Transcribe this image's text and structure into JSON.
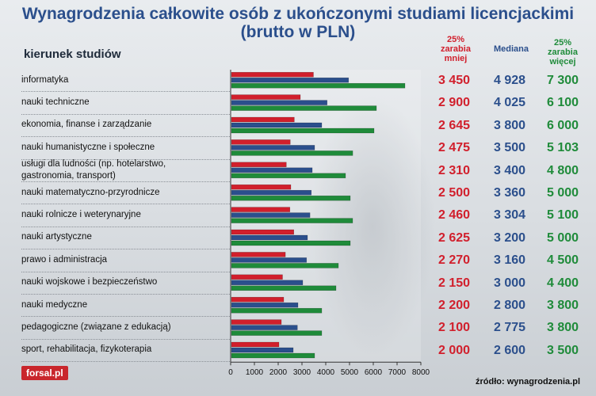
{
  "title_line1": "Wynagrodzenia całkowite osób z ukończonymi studiami licencjackimi",
  "title_line2": "(brutto w PLN)",
  "row_header": "kierunek studiów",
  "col_low": [
    "25%",
    "zarabia",
    "mniej"
  ],
  "col_med": "Mediana",
  "col_high": [
    "25%",
    "zarabia",
    "więcej"
  ],
  "logo": "forsal.pl",
  "source": "źródło: wynagrodzenia.pl",
  "colors": {
    "low": "#d11f2c",
    "median": "#2b4f8c",
    "high": "#1f8b3a"
  },
  "chart_data": {
    "type": "bar",
    "orientation": "horizontal",
    "xlim": [
      0,
      8000
    ],
    "x_ticks": [
      "0",
      "1000",
      "2000",
      "3000",
      "4000",
      "5000",
      "6000",
      "7000",
      "8000"
    ],
    "categories": [
      "informatyka",
      "nauki techniczne",
      "ekonomia, finanse i zarządzanie",
      "nauki humanistyczne i społeczne",
      "usługi dla ludności (np. hotelarstwo, gastronomia, transport)",
      "nauki matematyczno-przyrodnicze",
      "nauki rolnicze i weterynaryjne",
      "nauki artystyczne",
      "prawo i administracja",
      "nauki wojskowe i bezpieczeństwo",
      "nauki medyczne",
      "pedagogiczne (związane z edukacją)",
      "sport, rehabilitacja, fizykoterapia"
    ],
    "category_lines": [
      [
        "informatyka"
      ],
      [
        "nauki techniczne"
      ],
      [
        "ekonomia, finanse i zarządzanie"
      ],
      [
        "nauki humanistyczne i społeczne"
      ],
      [
        "usługi dla ludności (np. hotelarstwo,",
        "gastronomia, transport)"
      ],
      [
        "nauki matematyczno-przyrodnicze"
      ],
      [
        "nauki rolnicze i weterynaryjne"
      ],
      [
        "nauki artystyczne"
      ],
      [
        "prawo i administracja"
      ],
      [
        "nauki wojskowe i bezpieczeństwo"
      ],
      [
        "nauki medyczne"
      ],
      [
        "pedagogiczne (związane z edukacją)"
      ],
      [
        "sport, rehabilitacja, fizykoterapia"
      ]
    ],
    "series": [
      {
        "key": "low",
        "values": [
          3450,
          2900,
          2645,
          2475,
          2310,
          2500,
          2460,
          2625,
          2270,
          2150,
          2200,
          2100,
          2000
        ]
      },
      {
        "key": "median",
        "values": [
          4928,
          4025,
          3800,
          3500,
          3400,
          3360,
          3304,
          3200,
          3160,
          3000,
          2800,
          2775,
          2600
        ]
      },
      {
        "key": "high",
        "values": [
          7300,
          6100,
          6000,
          5103,
          4800,
          5000,
          5100,
          5000,
          4500,
          4400,
          3800,
          3800,
          3500
        ]
      }
    ],
    "value_labels": {
      "low": [
        "3 450",
        "2 900",
        "2 645",
        "2 475",
        "2 310",
        "2 500",
        "2 460",
        "2 625",
        "2 270",
        "2 150",
        "2 200",
        "2 100",
        "2 000"
      ],
      "median": [
        "4 928",
        "4 025",
        "3 800",
        "3 500",
        "3 400",
        "3 360",
        "3 304",
        "3 200",
        "3 160",
        "3 000",
        "2 800",
        "2 775",
        "2 600"
      ],
      "high": [
        "7 300",
        "6 100",
        "6 000",
        "5 103",
        "4 800",
        "5 000",
        "5 100",
        "5 000",
        "4 500",
        "4 400",
        "3 800",
        "3 800",
        "3 500"
      ]
    }
  }
}
